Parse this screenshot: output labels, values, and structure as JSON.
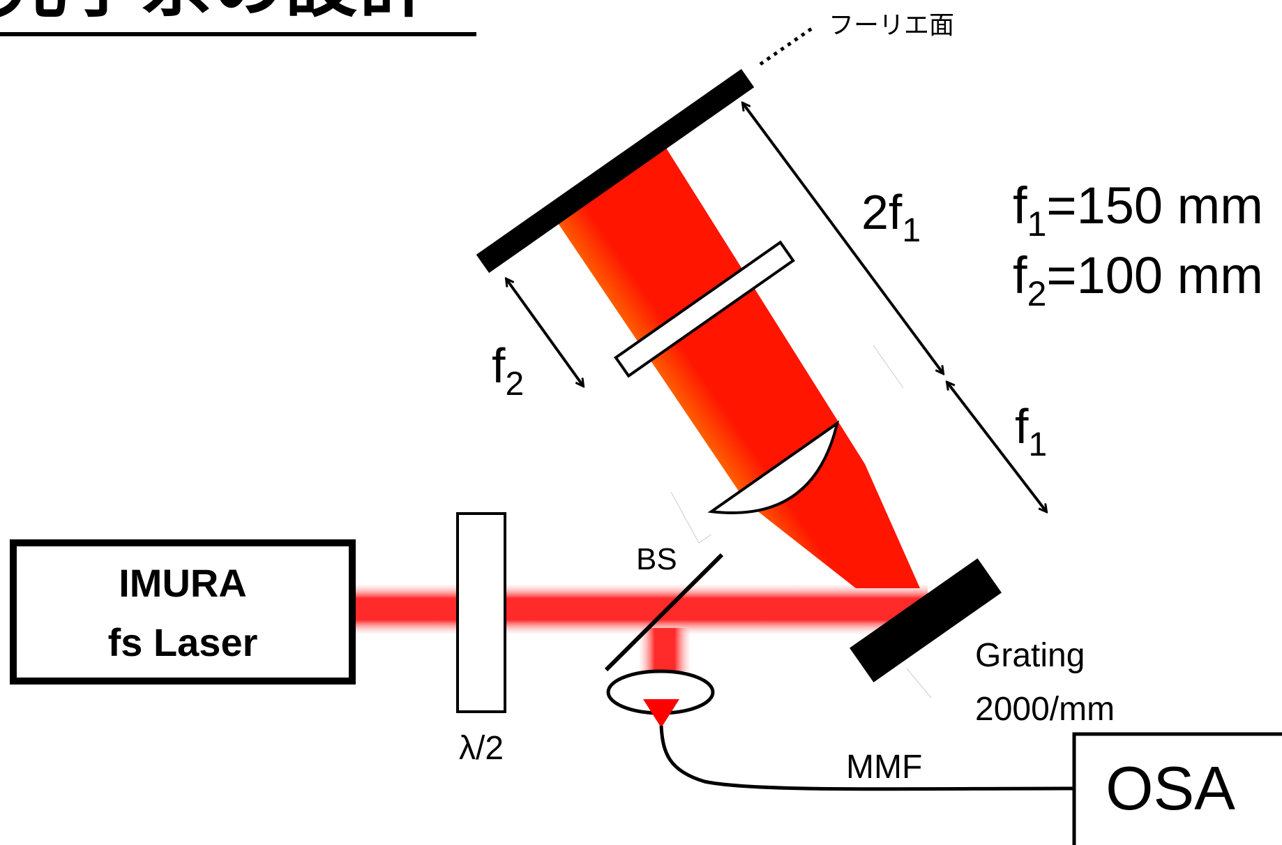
{
  "title": "光学系の設計",
  "fourier_plane_label": "フーリエ面",
  "focal_lengths": {
    "f1": {
      "symbol": "f",
      "subscript": "1",
      "value": "=150 mm"
    },
    "f2": {
      "symbol": "f",
      "subscript": "2",
      "value": "=100 mm"
    }
  },
  "dimension_labels": {
    "two_f1": {
      "prefix": "2f",
      "subscript": "1"
    },
    "f1": {
      "prefix": "f",
      "subscript": "1"
    },
    "f2": {
      "prefix": "f",
      "subscript": "2"
    }
  },
  "laser": {
    "line1": "IMURA",
    "line2": "fs Laser"
  },
  "half_wave_plate_label": "λ/2",
  "beam_splitter_label": "BS",
  "grating": {
    "line1": "Grating",
    "line2": "2000/mm"
  },
  "fiber_label": "MMF",
  "osa_label": "OSA",
  "colors": {
    "beam": "#ff1a1a",
    "black": "#000000",
    "spectrum": [
      "#ff0000",
      "#ffa500",
      "#ffff00",
      "#7cdd00",
      "#00a0e0",
      "#5b3fb5"
    ]
  }
}
